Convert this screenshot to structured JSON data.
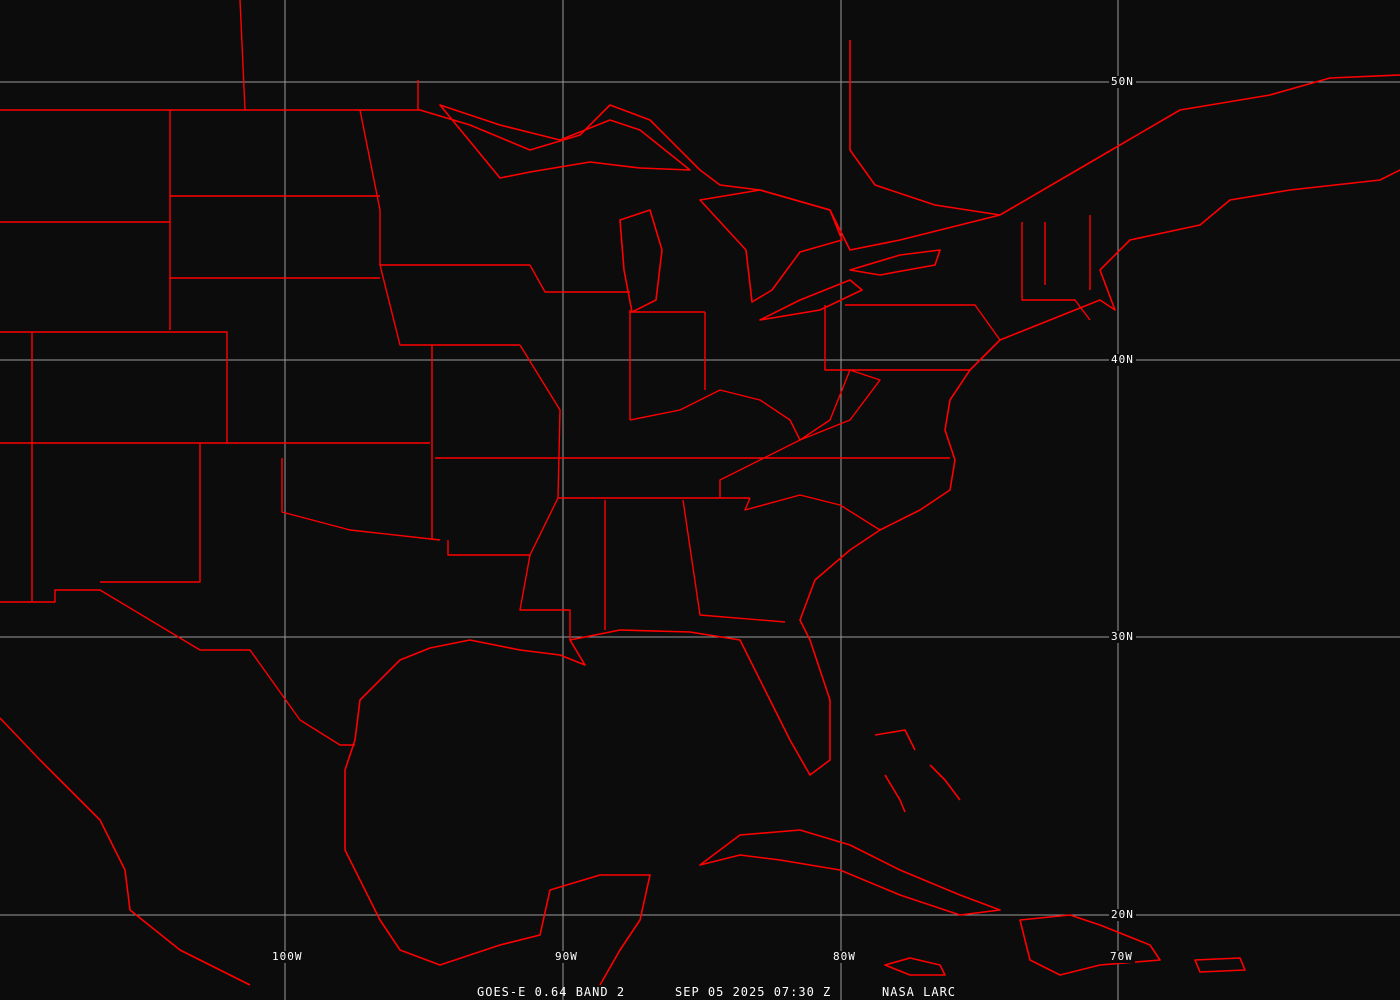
{
  "title": "GOES-E 0.64 BAND 2",
  "timestamp": "SEP 05 2025 07:30 Z",
  "credit": "NASA LARC",
  "latitude_labels": [
    "50N",
    "40N",
    "30N",
    "20N"
  ],
  "longitude_labels": [
    "100W",
    "90W",
    "80W",
    "70W"
  ],
  "colors": {
    "boundaries": "#ff0000",
    "grid": "#9a9a9a",
    "background": "#0c0c0c",
    "text": "#ffffff"
  }
}
